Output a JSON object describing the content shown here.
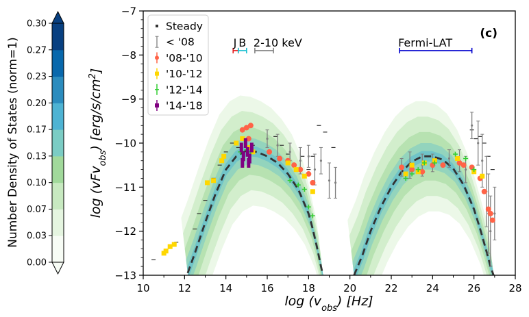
{
  "chart_data": {
    "type": "scatter",
    "panel_label": "(c)",
    "xlabel": "log (v_obs)  [Hz]",
    "ylabel": "log (vFv_obs)  [erg/s/cm^2]",
    "xlim": [
      10,
      28
    ],
    "ylim": [
      -13,
      -7
    ],
    "x_ticks": [
      "10",
      "12",
      "14",
      "16",
      "18",
      "20",
      "22",
      "24",
      "26",
      "28"
    ],
    "y_ticks": [
      "-13",
      "-12",
      "-11",
      "-10",
      "-9",
      "-8",
      "-7"
    ],
    "colorbar": {
      "label": "Number Density of States (norm=1)",
      "ticks": [
        "0.00",
        "0.03",
        "0.07",
        "0.10",
        "0.13",
        "0.17",
        "0.20",
        "0.23",
        "0.27",
        "0.30"
      ],
      "colors": [
        "#f7fcf5",
        "#e5f5e0",
        "#c7e9c0",
        "#a1d99b",
        "#7bccc4",
        "#4eb3d3",
        "#2b8cbe",
        "#0868ac",
        "#084081"
      ],
      "extend_color": "#084081"
    },
    "legend": [
      {
        "label": "Steady",
        "color": "#333333",
        "marker": "dot"
      },
      {
        "label": "< '08",
        "color": "#808080",
        "marker": "errbar"
      },
      {
        "label": "'08-'10",
        "color": "#ff6347",
        "marker": "circle"
      },
      {
        "label": "'10-'12",
        "color": "#ffd700",
        "marker": "square"
      },
      {
        "label": "'12-'14",
        "color": "#32cd32",
        "marker": "plus"
      },
      {
        "label": "'14-'18",
        "color": "#800080",
        "marker": "square"
      }
    ],
    "bands": [
      {
        "label": "J",
        "x": [
          14.35,
          14.6
        ],
        "y": -7.9,
        "color": "#e41a1c"
      },
      {
        "label": "B",
        "x": [
          14.6,
          15.0
        ],
        "y": -7.9,
        "color": "#17becf"
      },
      {
        "label": "2-10 keV",
        "x": [
          15.4,
          16.3
        ],
        "y": -7.9,
        "color": "#808080"
      },
      {
        "label": "Fermi-LAT",
        "x": [
          22.4,
          25.9
        ],
        "y": -7.9,
        "color": "#0000cd"
      }
    ],
    "model_curve": {
      "color": "#333333",
      "synchrotron": {
        "x": [
          12.15,
          12.5,
          13,
          13.5,
          14,
          14.5,
          15,
          15.5,
          16,
          16.5,
          17,
          17.5,
          18,
          18.2,
          18.4,
          18.6,
          18.7
        ],
        "y": [
          -12.95,
          -12.5,
          -11.8,
          -11.15,
          -10.6,
          -10.3,
          -10.17,
          -10.2,
          -10.3,
          -10.45,
          -10.7,
          -11.05,
          -11.6,
          -11.95,
          -12.35,
          -12.8,
          -13
        ]
      },
      "compton": {
        "x": [
          20.2,
          20.6,
          21,
          21.5,
          22,
          22.5,
          23,
          23.5,
          24,
          24.5,
          25,
          25.5,
          26,
          26.3,
          26.6,
          26.8,
          26.95
        ],
        "y": [
          -13,
          -12.55,
          -12.0,
          -11.45,
          -11.0,
          -10.65,
          -10.42,
          -10.3,
          -10.3,
          -10.38,
          -10.58,
          -10.95,
          -11.5,
          -11.95,
          -12.45,
          -12.8,
          -13
        ]
      }
    },
    "series": [
      {
        "name": "Steady",
        "color": "#333333",
        "points": [
          [
            10.5,
            -12.65
          ],
          [
            11.6,
            -12.25
          ],
          [
            12.5,
            -11.95
          ],
          [
            12.7,
            -11.6
          ],
          [
            13.0,
            -11.3
          ],
          [
            13.4,
            -10.8
          ],
          [
            13.7,
            -10.5
          ],
          [
            14.0,
            -10.2
          ],
          [
            14.3,
            -10.0
          ],
          [
            14.6,
            -10.1
          ],
          [
            15.0,
            -9.9
          ],
          [
            15.3,
            -10.05
          ],
          [
            16.4,
            -9.85
          ],
          [
            16.7,
            -10.05
          ],
          [
            17.0,
            -10.25
          ],
          [
            17.3,
            -10.5
          ],
          [
            17.7,
            -10.3
          ],
          [
            18.0,
            -10.6
          ],
          [
            18.2,
            -10.3
          ],
          [
            18.5,
            -9.6
          ],
          [
            18.8,
            -9.75
          ],
          [
            19.2,
            -10.1
          ],
          [
            25.9,
            -9.7
          ],
          [
            26.1,
            -9.9
          ],
          [
            26.3,
            -9.85
          ],
          [
            26.5,
            -10.0
          ],
          [
            26.7,
            -10.3
          ],
          [
            26.9,
            -10.6
          ]
        ]
      },
      {
        "name": "< '08",
        "color": "#808080",
        "points": [
          [
            16.0,
            -9.9,
            0.2
          ],
          [
            16.5,
            -10.05,
            0.25
          ],
          [
            17.1,
            -10.2,
            0.2
          ],
          [
            17.6,
            -10.4,
            0.3
          ],
          [
            18.0,
            -10.3,
            0.25
          ],
          [
            18.3,
            -10.6,
            0.35
          ],
          [
            18.6,
            -10.4,
            0.3
          ],
          [
            19.0,
            -10.85,
            0.4
          ],
          [
            19.3,
            -10.9,
            0.35
          ],
          [
            22.5,
            -10.55,
            0.2
          ],
          [
            22.9,
            -10.5,
            0.3
          ],
          [
            23.5,
            -10.5,
            0.25
          ],
          [
            24.0,
            -10.45,
            0.2
          ],
          [
            24.8,
            -10.35,
            0.2
          ],
          [
            25.3,
            -10.4,
            0.25
          ],
          [
            25.6,
            -10.6,
            0.3
          ],
          [
            25.9,
            -9.6,
            0.3
          ],
          [
            26.2,
            -10.0,
            0.5
          ],
          [
            26.4,
            -10.4,
            0.6
          ],
          [
            26.6,
            -11.1,
            0.8
          ],
          [
            26.7,
            -11.6,
            0.9
          ],
          [
            26.8,
            -12.0,
            0.8
          ],
          [
            27.0,
            -11.6,
            0.6
          ]
        ]
      },
      {
        "name": "'08-'10",
        "color": "#ff6347",
        "points": [
          [
            14.8,
            -9.7
          ],
          [
            15.0,
            -9.65
          ],
          [
            15.1,
            -9.9
          ],
          [
            15.2,
            -9.6
          ],
          [
            16.1,
            -10.2
          ],
          [
            16.6,
            -10.35
          ],
          [
            17.0,
            -10.4
          ],
          [
            17.3,
            -10.5
          ],
          [
            17.6,
            -10.6
          ],
          [
            18.0,
            -10.7
          ],
          [
            18.2,
            -10.9
          ],
          [
            22.5,
            -10.55
          ],
          [
            23.0,
            -10.6
          ],
          [
            23.5,
            -10.65
          ],
          [
            24.0,
            -10.5
          ],
          [
            24.5,
            -10.5
          ],
          [
            25.3,
            -10.45
          ],
          [
            25.5,
            -10.5
          ],
          [
            25.9,
            -10.55
          ],
          [
            26.3,
            -10.8
          ],
          [
            26.5,
            -11.1
          ],
          [
            26.7,
            -11.5
          ],
          [
            26.8,
            -11.6
          ],
          [
            26.9,
            -11.75
          ]
        ]
      },
      {
        "name": "'10-'12",
        "color": "#ffd700",
        "points": [
          [
            11.0,
            -12.5
          ],
          [
            11.1,
            -12.45
          ],
          [
            11.3,
            -12.35
          ],
          [
            11.5,
            -12.3
          ],
          [
            13.1,
            -10.9
          ],
          [
            13.4,
            -10.85
          ],
          [
            13.8,
            -10.4
          ],
          [
            13.9,
            -10.3
          ],
          [
            14.5,
            -10.0
          ],
          [
            14.8,
            -9.9
          ],
          [
            15.1,
            -10.1
          ],
          [
            15.3,
            -10.2
          ],
          [
            17.0,
            -10.45
          ],
          [
            17.4,
            -10.6
          ],
          [
            17.8,
            -10.75
          ],
          [
            18.2,
            -11.1
          ],
          [
            22.7,
            -10.7
          ],
          [
            23.0,
            -10.5
          ],
          [
            23.3,
            -10.65
          ],
          [
            23.6,
            -10.45
          ],
          [
            24.1,
            -10.4
          ],
          [
            25.2,
            -10.35
          ],
          [
            26.0,
            -10.65
          ],
          [
            26.4,
            -10.75
          ]
        ]
      },
      {
        "name": "'12-'14",
        "color": "#32cd32",
        "points": [
          [
            14.7,
            -10.2
          ],
          [
            15.0,
            -10.15
          ],
          [
            15.2,
            -10.2
          ],
          [
            17.1,
            -10.85
          ],
          [
            17.5,
            -10.95
          ],
          [
            17.8,
            -11.05
          ],
          [
            18.0,
            -11.45
          ],
          [
            18.2,
            -11.65
          ],
          [
            22.7,
            -10.8
          ],
          [
            23.0,
            -10.7
          ],
          [
            23.3,
            -10.6
          ],
          [
            23.6,
            -10.45
          ],
          [
            24.1,
            -10.45
          ],
          [
            25.1,
            -10.25
          ],
          [
            25.6,
            -10.35
          ],
          [
            26.0,
            -10.6
          ]
        ]
      },
      {
        "name": "'14-'18",
        "color": "#800080",
        "points": [
          [
            14.75,
            -10.1
          ],
          [
            14.85,
            -10.3
          ],
          [
            14.95,
            -10.0
          ],
          [
            15.05,
            -10.2
          ],
          [
            15.15,
            -10.35
          ],
          [
            15.25,
            -10.1
          ],
          [
            14.8,
            -10.45
          ],
          [
            15.1,
            -10.45
          ]
        ]
      }
    ]
  }
}
